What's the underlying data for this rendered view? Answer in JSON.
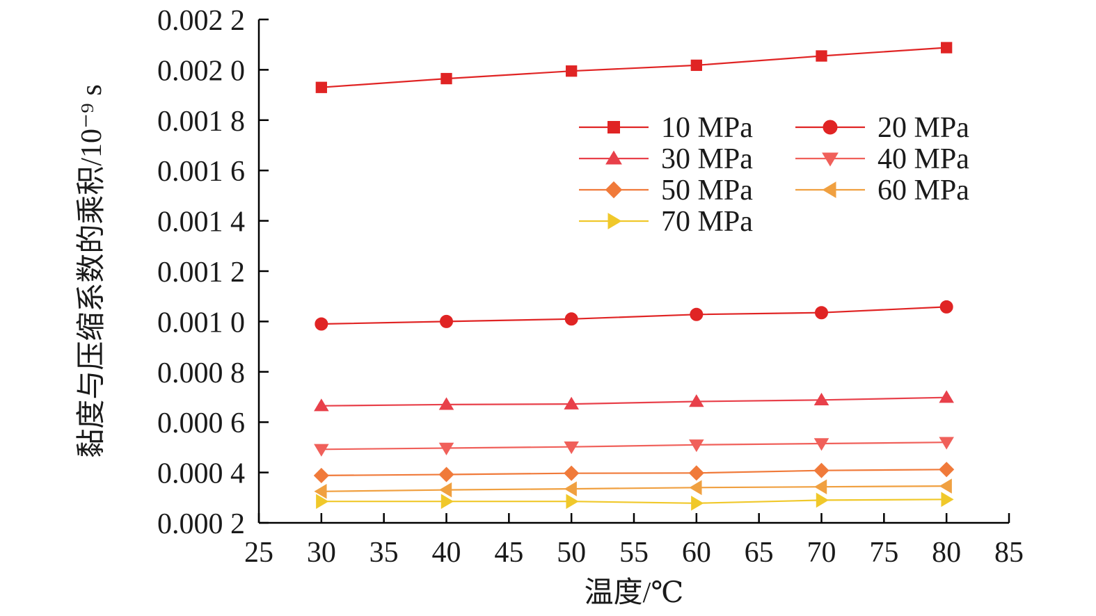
{
  "chart_data": {
    "type": "line",
    "title": "",
    "xlabel": "温度/℃",
    "ylabel": "黏度与压缩系数的乘积/10⁻⁹ s",
    "xlim": [
      25,
      85
    ],
    "ylim": [
      0.0002,
      0.0022
    ],
    "x_ticks": [
      "25",
      "30",
      "35",
      "40",
      "45",
      "50",
      "55",
      "60",
      "65",
      "70",
      "75",
      "80",
      "85"
    ],
    "y_ticks": [
      "0.000 2",
      "0.000 4",
      "0.000 6",
      "0.000 8",
      "0.001 0",
      "0.001 2",
      "0.001 4",
      "0.001 6",
      "0.001 8",
      "0.002 0",
      "0.002 2"
    ],
    "x": [
      30,
      40,
      50,
      60,
      70,
      80
    ],
    "series": [
      {
        "name": "10 MPa",
        "marker": "square",
        "color": "#e02424",
        "values": [
          0.00193,
          0.001965,
          0.001995,
          0.002018,
          0.002055,
          0.002088
        ]
      },
      {
        "name": "20 MPa",
        "marker": "circle",
        "color": "#e02424",
        "values": [
          0.00099,
          0.001,
          0.00101,
          0.001028,
          0.001035,
          0.001058
        ]
      },
      {
        "name": "30 MPa",
        "marker": "triangle-up",
        "color": "#e8404a",
        "values": [
          0.000665,
          0.00067,
          0.000672,
          0.000682,
          0.000688,
          0.000698
        ]
      },
      {
        "name": "40 MPa",
        "marker": "triangle-down",
        "color": "#f0605a",
        "values": [
          0.000492,
          0.000497,
          0.000502,
          0.00051,
          0.000515,
          0.00052
        ]
      },
      {
        "name": "50 MPa",
        "marker": "diamond",
        "color": "#f07a3a",
        "values": [
          0.000388,
          0.000392,
          0.000397,
          0.000398,
          0.000408,
          0.000412
        ]
      },
      {
        "name": "60 MPa",
        "marker": "triangle-left",
        "color": "#f0a040",
        "values": [
          0.000325,
          0.000331,
          0.000335,
          0.00034,
          0.000343,
          0.000346
        ]
      },
      {
        "name": "70 MPa",
        "marker": "triangle-right",
        "color": "#f0c82a",
        "values": [
          0.000285,
          0.000285,
          0.000285,
          0.000278,
          0.00029,
          0.000293
        ]
      }
    ],
    "legend": "top-right, two columns"
  }
}
